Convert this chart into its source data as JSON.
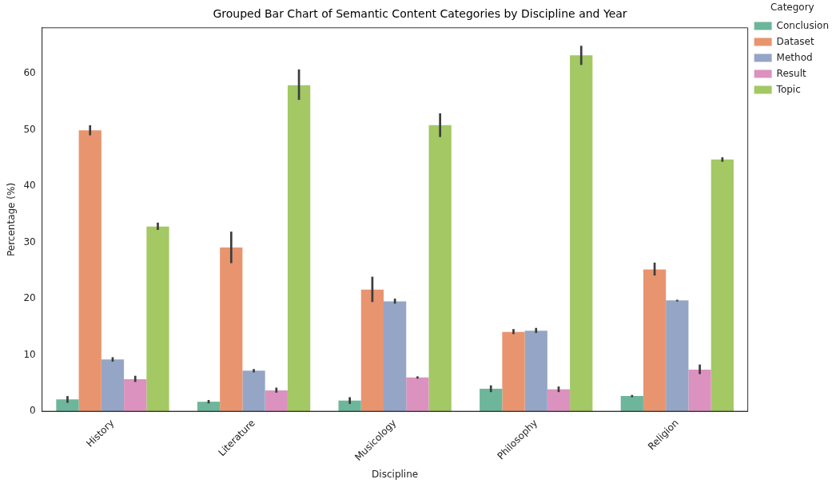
{
  "chart_data": {
    "type": "bar",
    "title": "Grouped Bar Chart of Semantic Content Categories by Discipline and Year",
    "xlabel": "Discipline",
    "ylabel": "Percentage (%)",
    "legend_title": "Category",
    "legend": "top right",
    "grid": false,
    "categories": [
      "History",
      "Literature",
      "Musicology",
      "Philosophy",
      "Religion"
    ],
    "ylim": [
      0,
      68.1
    ],
    "yticks": [
      0,
      10,
      20,
      30,
      40,
      50,
      60
    ],
    "series": [
      {
        "name": "Conclusion",
        "color": "#6db69b",
        "values": [
          2.1,
          1.7,
          1.9,
          4.0,
          2.7
        ],
        "errors": [
          [
            1.5,
            2.7
          ],
          [
            1.4,
            2.0
          ],
          [
            1.3,
            2.5
          ],
          [
            3.4,
            4.6
          ],
          [
            2.5,
            2.9
          ]
        ]
      },
      {
        "name": "Dataset",
        "color": "#e8956f",
        "values": [
          49.9,
          29.1,
          21.6,
          14.1,
          25.2
        ],
        "errors": [
          [
            49.0,
            50.8
          ],
          [
            26.3,
            31.9
          ],
          [
            19.4,
            23.9
          ],
          [
            13.7,
            14.6
          ],
          [
            24.1,
            26.4
          ]
        ]
      },
      {
        "name": "Method",
        "color": "#95a5c5",
        "values": [
          9.2,
          7.2,
          19.5,
          14.3,
          19.7
        ],
        "errors": [
          [
            8.8,
            9.6
          ],
          [
            6.9,
            7.5
          ],
          [
            19.1,
            20.0
          ],
          [
            13.9,
            14.8
          ],
          [
            19.5,
            19.8
          ]
        ]
      },
      {
        "name": "Result",
        "color": "#db92bf",
        "values": [
          5.7,
          3.7,
          6.0,
          3.9,
          7.4
        ],
        "errors": [
          [
            5.2,
            6.3
          ],
          [
            3.3,
            4.2
          ],
          [
            5.8,
            6.2
          ],
          [
            3.4,
            4.4
          ],
          [
            6.6,
            8.3
          ]
        ]
      },
      {
        "name": "Topic",
        "color": "#a3c864",
        "values": [
          32.8,
          57.9,
          50.8,
          63.2,
          44.7
        ],
        "errors": [
          [
            32.2,
            33.5
          ],
          [
            55.3,
            60.7
          ],
          [
            48.7,
            52.9
          ],
          [
            61.5,
            64.9
          ],
          [
            44.3,
            45.1
          ]
        ]
      }
    ]
  }
}
